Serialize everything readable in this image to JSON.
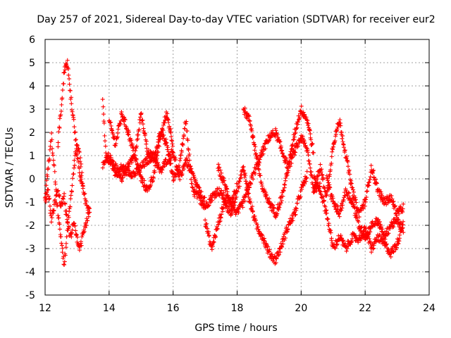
{
  "chart_data": {
    "type": "scatter",
    "title": "Day 257 of 2021, Sidereal Day-to-day VTEC variation (SDTVAR) for receiver eur2",
    "xlabel": "GPS time / hours",
    "ylabel": "SDTVAR / TECUs",
    "xlim": [
      12,
      24
    ],
    "ylim": [
      -5,
      6
    ],
    "xticks": [
      12,
      14,
      16,
      18,
      20,
      22,
      24
    ],
    "yticks": [
      -5,
      -4,
      -3,
      -2,
      -1,
      0,
      1,
      2,
      3,
      4,
      5,
      6
    ],
    "grid": true,
    "marker": "+",
    "color": "#ff0000",
    "series": [
      {
        "name": "eur2",
        "x_start": 12.0,
        "x_end": 23.3,
        "note": "dense plus-marker scatter of several overlapping satellite tracks",
        "tracks": [
          [
            [
              12.0,
              -0.8
            ],
            [
              12.1,
              0.5
            ],
            [
              12.2,
              1.8
            ],
            [
              12.3,
              0.2
            ],
            [
              12.4,
              -1.5
            ],
            [
              12.5,
              -2.5
            ],
            [
              12.6,
              -3.8
            ],
            [
              12.7,
              -2.0
            ],
            [
              12.8,
              -1.0
            ],
            [
              12.9,
              0.5
            ],
            [
              13.0,
              1.5
            ],
            [
              13.1,
              0.8
            ],
            [
              13.2,
              -0.5
            ],
            [
              13.3,
              -1.2
            ],
            [
              13.4,
              -1.5
            ]
          ],
          [
            [
              12.0,
              -1.0
            ],
            [
              12.1,
              -0.5
            ],
            [
              12.2,
              -1.8
            ],
            [
              12.3,
              -1.0
            ],
            [
              12.4,
              -0.5
            ],
            [
              12.5,
              -1.2
            ],
            [
              12.6,
              -0.8
            ],
            [
              12.7,
              -2.0
            ],
            [
              12.8,
              -2.5
            ],
            [
              12.9,
              -1.8
            ],
            [
              13.0,
              -2.6
            ],
            [
              13.1,
              -3.0
            ],
            [
              13.2,
              -2.2
            ],
            [
              13.3,
              -1.8
            ],
            [
              13.4,
              -1.3
            ]
          ],
          [
            [
              12.4,
              1.5
            ],
            [
              12.5,
              3.0
            ],
            [
              12.6,
              4.6
            ],
            [
              12.7,
              5.0
            ],
            [
              12.8,
              3.5
            ],
            [
              12.9,
              2.5
            ],
            [
              13.0,
              1.0
            ],
            [
              13.1,
              0.0
            ],
            [
              13.2,
              -0.5
            ]
          ],
          [
            [
              13.8,
              3.5
            ],
            [
              13.9,
              1.0
            ],
            [
              14.0,
              0.8
            ],
            [
              14.2,
              0.5
            ],
            [
              14.4,
              0.0
            ],
            [
              14.6,
              0.6
            ],
            [
              14.8,
              1.0
            ],
            [
              15.0,
              2.8
            ],
            [
              15.2,
              1.2
            ],
            [
              15.4,
              0.8
            ],
            [
              15.6,
              2.0
            ],
            [
              15.8,
              1.5
            ],
            [
              16.0,
              0.0
            ],
            [
              16.2,
              0.5
            ],
            [
              16.4,
              2.5
            ],
            [
              16.6,
              -0.5
            ],
            [
              16.8,
              -0.8
            ],
            [
              17.0,
              -1.2
            ],
            [
              17.2,
              -0.8
            ],
            [
              17.4,
              -0.5
            ],
            [
              17.6,
              -0.8
            ],
            [
              17.8,
              -1.0
            ],
            [
              18.0,
              -0.3
            ]
          ],
          [
            [
              13.8,
              0.5
            ],
            [
              14.0,
              1.0
            ],
            [
              14.2,
              0.2
            ],
            [
              14.4,
              0.5
            ],
            [
              14.6,
              0.3
            ],
            [
              14.8,
              0.2
            ],
            [
              15.0,
              0.5
            ],
            [
              15.2,
              0.8
            ],
            [
              15.4,
              1.0
            ],
            [
              15.6,
              0.3
            ],
            [
              15.8,
              0.8
            ],
            [
              16.0,
              1.2
            ],
            [
              16.2,
              0.0
            ],
            [
              16.4,
              0.8
            ],
            [
              16.6,
              0.2
            ],
            [
              16.8,
              -0.5
            ],
            [
              17.0,
              -1.0
            ]
          ],
          [
            [
              14.0,
              2.5
            ],
            [
              14.2,
              1.5
            ],
            [
              14.4,
              2.8
            ],
            [
              14.6,
              2.0
            ],
            [
              14.8,
              1.0
            ],
            [
              15.0,
              0.0
            ],
            [
              15.2,
              -0.5
            ],
            [
              15.4,
              0.2
            ],
            [
              15.6,
              1.8
            ],
            [
              15.8,
              2.8
            ],
            [
              16.0,
              1.5
            ]
          ],
          [
            [
              17.0,
              -1.8
            ],
            [
              17.2,
              -3.0
            ],
            [
              17.4,
              -2.0
            ],
            [
              17.6,
              -1.0
            ],
            [
              17.8,
              -1.5
            ],
            [
              18.0,
              -0.5
            ],
            [
              18.2,
              0.5
            ],
            [
              18.4,
              -1.0
            ],
            [
              18.6,
              -2.0
            ],
            [
              18.8,
              -2.5
            ],
            [
              19.0,
              -3.2
            ],
            [
              19.2,
              -3.5
            ],
            [
              19.4,
              -2.8
            ],
            [
              19.6,
              -2.0
            ],
            [
              19.8,
              -1.5
            ],
            [
              20.0,
              -0.5
            ],
            [
              20.2,
              0.2
            ]
          ],
          [
            [
              17.4,
              0.5
            ],
            [
              17.6,
              -0.2
            ],
            [
              17.8,
              -1.0
            ],
            [
              18.0,
              -1.5
            ],
            [
              18.2,
              -1.0
            ],
            [
              18.4,
              -0.2
            ],
            [
              18.6,
              0.5
            ],
            [
              18.8,
              1.2
            ],
            [
              19.0,
              1.8
            ],
            [
              19.2,
              2.0
            ],
            [
              19.4,
              1.2
            ],
            [
              19.6,
              0.5
            ],
            [
              19.8,
              1.2
            ],
            [
              20.0,
              1.8
            ],
            [
              20.2,
              1.2
            ],
            [
              20.4,
              -0.5
            ],
            [
              20.6,
              -0.2
            ]
          ],
          [
            [
              18.2,
              3.0
            ],
            [
              18.4,
              2.5
            ],
            [
              18.6,
              1.0
            ],
            [
              18.8,
              -0.5
            ],
            [
              19.0,
              -1.0
            ],
            [
              19.2,
              -1.5
            ],
            [
              19.4,
              -0.8
            ],
            [
              19.6,
              0.5
            ],
            [
              19.8,
              2.0
            ],
            [
              20.0,
              3.0
            ],
            [
              20.2,
              2.5
            ],
            [
              20.4,
              1.0
            ]
          ],
          [
            [
              20.4,
              0.0
            ],
            [
              20.6,
              -0.5
            ],
            [
              20.8,
              -1.5
            ],
            [
              21.0,
              -3.0
            ],
            [
              21.2,
              -2.5
            ],
            [
              21.4,
              -3.0
            ],
            [
              21.6,
              -2.5
            ],
            [
              21.8,
              -2.6
            ],
            [
              22.0,
              -2.2
            ],
            [
              22.2,
              -3.0
            ],
            [
              22.4,
              -2.5
            ],
            [
              22.6,
              -2.8
            ],
            [
              22.8,
              -3.2
            ],
            [
              23.0,
              -2.8
            ],
            [
              23.2,
              -1.8
            ]
          ],
          [
            [
              20.4,
              -0.5
            ],
            [
              20.6,
              0.5
            ],
            [
              20.8,
              -0.8
            ],
            [
              21.0,
              1.5
            ],
            [
              21.2,
              2.5
            ],
            [
              21.4,
              1.0
            ],
            [
              21.6,
              -0.5
            ],
            [
              21.8,
              -1.5
            ],
            [
              22.0,
              -1.0
            ],
            [
              22.2,
              0.5
            ],
            [
              22.4,
              -0.5
            ],
            [
              22.6,
              -1.0
            ],
            [
              22.8,
              -0.8
            ],
            [
              23.0,
              -1.5
            ],
            [
              23.2,
              -1.2
            ]
          ],
          [
            [
              20.8,
              0.0
            ],
            [
              21.0,
              -1.0
            ],
            [
              21.2,
              -1.5
            ],
            [
              21.4,
              -0.5
            ],
            [
              21.6,
              -1.0
            ],
            [
              21.8,
              -2.0
            ],
            [
              22.0,
              -2.5
            ],
            [
              22.2,
              -2.0
            ],
            [
              22.4,
              -1.8
            ],
            [
              22.6,
              -2.5
            ],
            [
              22.8,
              -2.0
            ],
            [
              23.0,
              -1.8
            ],
            [
              23.2,
              -2.2
            ]
          ]
        ]
      }
    ]
  }
}
